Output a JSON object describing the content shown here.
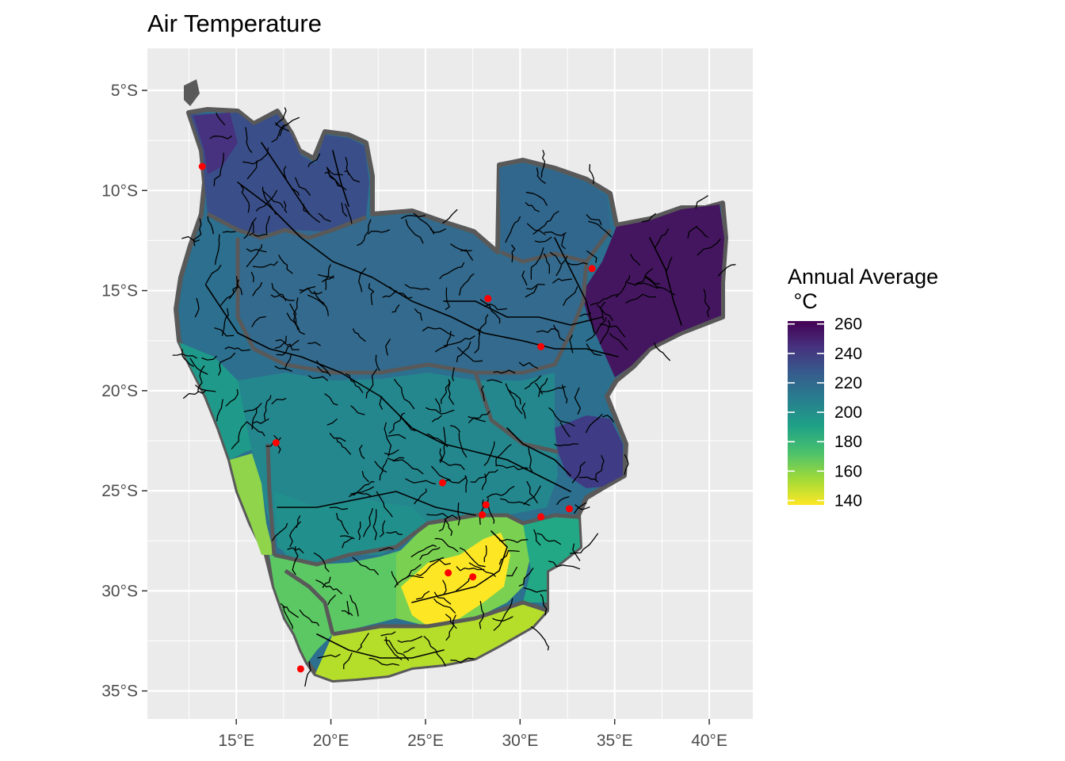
{
  "chart_data": {
    "type": "heatmap",
    "title": "Air Temperature",
    "xlabel": "",
    "ylabel": "",
    "x_ticks": [
      "15°E",
      "20°E",
      "25°E",
      "30°E",
      "35°E",
      "40°E"
    ],
    "x_tick_values": [
      15,
      20,
      25,
      30,
      35,
      40
    ],
    "y_ticks": [
      "5°S",
      "10°S",
      "15°S",
      "20°S",
      "25°S",
      "30°S",
      "35°S"
    ],
    "y_tick_values": [
      -5,
      -10,
      -15,
      -20,
      -25,
      -30,
      -35
    ],
    "xlim": [
      10.3,
      42.3
    ],
    "ylim": [
      -36.4,
      -2.9
    ],
    "grid": true,
    "legend": {
      "title": "Annual Average\n °C",
      "placement": "right",
      "ticks": [
        "260",
        "240",
        "220",
        "200",
        "180",
        "160",
        "140"
      ],
      "tick_values": [
        260,
        240,
        220,
        200,
        180,
        160,
        140
      ],
      "range": [
        137,
        262
      ]
    },
    "points": [
      {
        "lon": 13.2,
        "lat": -8.8
      },
      {
        "lon": 33.8,
        "lat": -13.9
      },
      {
        "lon": 28.3,
        "lat": -15.4
      },
      {
        "lon": 31.1,
        "lat": -17.8
      },
      {
        "lon": 17.1,
        "lat": -22.6
      },
      {
        "lon": 25.9,
        "lat": -24.6
      },
      {
        "lon": 28.2,
        "lat": -25.7
      },
      {
        "lon": 28.0,
        "lat": -26.2
      },
      {
        "lon": 31.1,
        "lat": -26.3
      },
      {
        "lon": 32.6,
        "lat": -25.9
      },
      {
        "lon": 26.2,
        "lat": -29.1
      },
      {
        "lon": 27.5,
        "lat": -29.3
      },
      {
        "lon": 18.4,
        "lat": -33.9
      }
    ],
    "colors": {
      "panel": "#EBEBEB",
      "grid": "#FFFFFF",
      "axis_text": "#4D4D4D",
      "border": "#595959",
      "river": "#000000",
      "point": "#FF0000",
      "scale": [
        "#FDE725",
        "#A0DA39",
        "#4AC16D",
        "#1FA187",
        "#277F8E",
        "#365C8D",
        "#46327E",
        "#440154"
      ]
    }
  }
}
